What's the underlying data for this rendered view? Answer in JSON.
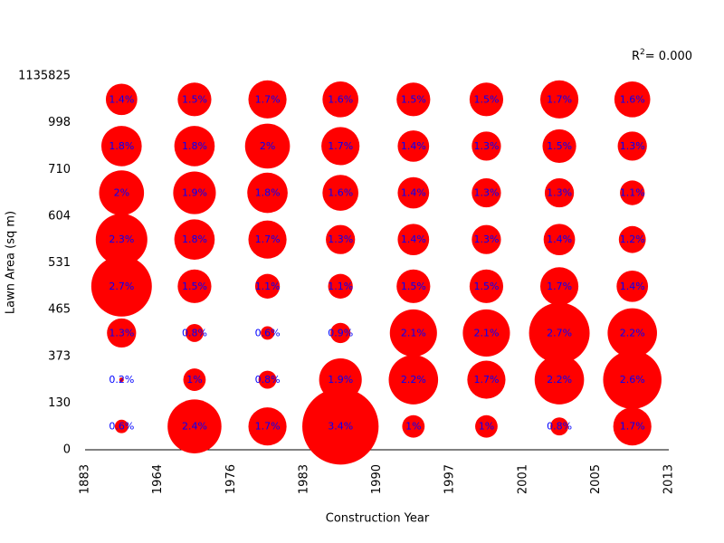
{
  "chart_data": {
    "type": "scatter",
    "xlabel": "Construction Year",
    "ylabel": "Lawn Area (sq m)",
    "x_ticks": [
      1883,
      1964,
      1976,
      1983,
      1990,
      1997,
      2001,
      2005,
      2013
    ],
    "y_ticks": [
      0,
      130,
      373,
      465,
      531,
      604,
      710,
      998,
      1135825
    ],
    "values": [
      [
        0.6,
        2.4,
        1.7,
        3.4,
        1,
        1,
        0.8,
        1.7
      ],
      [
        0.2,
        1,
        0.8,
        1.9,
        2.2,
        1.7,
        2.2,
        2.6
      ],
      [
        1.3,
        0.8,
        0.6,
        0.9,
        2.1,
        2.1,
        2.7,
        2.2
      ],
      [
        2.7,
        1.5,
        1.1,
        1.1,
        1.5,
        1.5,
        1.7,
        1.4
      ],
      [
        2.3,
        1.8,
        1.7,
        1.3,
        1.4,
        1.3,
        1.4,
        1.2
      ],
      [
        2,
        1.9,
        1.8,
        1.6,
        1.4,
        1.3,
        1.3,
        1.1
      ],
      [
        1.8,
        1.8,
        2,
        1.7,
        1.4,
        1.3,
        1.5,
        1.3
      ],
      [
        1.4,
        1.5,
        1.7,
        1.6,
        1.5,
        1.5,
        1.7,
        1.6
      ]
    ],
    "labels": [
      [
        "0.6%",
        "2.4%",
        "1.7%",
        "3.4%",
        "1%",
        "1%",
        "0.8%",
        "1.7%"
      ],
      [
        "0.2%",
        "1%",
        "0.8%",
        "1.9%",
        "2.2%",
        "1.7%",
        "2.2%",
        "2.6%"
      ],
      [
        "1.3%",
        "0.8%",
        "0.6%",
        "0.9%",
        "2.1%",
        "2.1%",
        "2.7%",
        "2.2%"
      ],
      [
        "2.7%",
        "1.5%",
        "1.1%",
        "1.1%",
        "1.5%",
        "1.5%",
        "1.7%",
        "1.4%"
      ],
      [
        "2.3%",
        "1.8%",
        "1.7%",
        "1.3%",
        "1.4%",
        "1.3%",
        "1.4%",
        "1.2%"
      ],
      [
        "2%",
        "1.9%",
        "1.8%",
        "1.6%",
        "1.4%",
        "1.3%",
        "1.3%",
        "1.1%"
      ],
      [
        "1.8%",
        "1.8%",
        "2%",
        "1.7%",
        "1.4%",
        "1.3%",
        "1.5%",
        "1.3%"
      ],
      [
        "1.4%",
        "1.5%",
        "1.7%",
        "1.6%",
        "1.5%",
        "1.5%",
        "1.7%",
        "1.6%"
      ]
    ],
    "annotation": {
      "symbol": "R",
      "superscript": "2",
      "text": "= 0.000"
    },
    "grid": false,
    "legend": "none",
    "colors": {
      "bubble": "#ff0000",
      "label": "#0000ff",
      "axis": "#000000"
    }
  }
}
